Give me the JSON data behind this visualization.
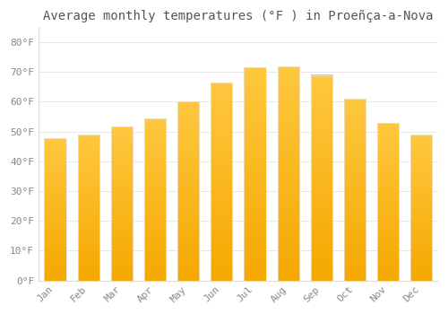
{
  "title": "Average monthly temperatures (°F ) in Proeñça-a-Nova",
  "months": [
    "Jan",
    "Feb",
    "Mar",
    "Apr",
    "May",
    "Jun",
    "Jul",
    "Aug",
    "Sep",
    "Oct",
    "Nov",
    "Dec"
  ],
  "values": [
    47.8,
    49.0,
    51.8,
    54.5,
    60.0,
    66.5,
    71.5,
    71.8,
    69.0,
    61.0,
    53.0,
    49.0
  ],
  "bar_color_top": "#FFC840",
  "bar_color_bottom": "#F5A800",
  "bar_edge_color": "#E8E8E8",
  "background_color": "#FFFFFF",
  "grid_color": "#DDDDDD",
  "yticks": [
    0,
    10,
    20,
    30,
    40,
    50,
    60,
    70,
    80
  ],
  "ylim": [
    0,
    85
  ],
  "title_fontsize": 10,
  "tick_fontsize": 8,
  "text_color": "#888888",
  "title_color": "#555555",
  "bar_width": 0.65
}
